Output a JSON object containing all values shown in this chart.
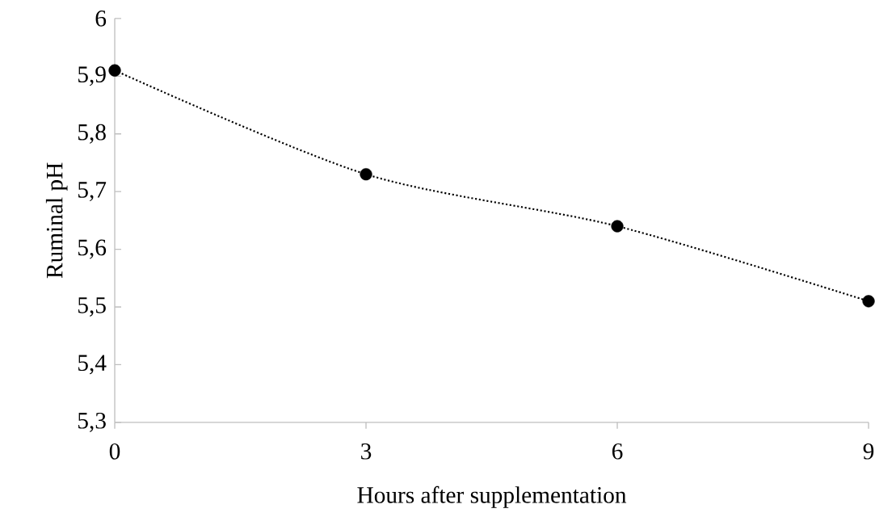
{
  "chart_data": {
    "type": "line",
    "xlabel": "Hours after supplementation",
    "ylabel": "Ruminal pH",
    "x": [
      0,
      3,
      6,
      9
    ],
    "series": [
      {
        "color": "#000000",
        "values": [
          5.91,
          5.73,
          5.64,
          5.51
        ]
      }
    ],
    "xlim": [
      0,
      9
    ],
    "xticks": [
      0,
      3,
      6,
      9
    ],
    "ylim": [
      5.3,
      6
    ],
    "yticks": [
      {
        "value": 5.3,
        "label": "5,3"
      },
      {
        "value": 5.4,
        "label": "5,4"
      },
      {
        "value": 5.5,
        "label": "5,5"
      },
      {
        "value": 5.6,
        "label": "5,6"
      },
      {
        "value": 5.7,
        "label": "5,7"
      },
      {
        "value": 5.8,
        "label": "5,8"
      },
      {
        "value": 5.9,
        "label": "5,9"
      },
      6
    ],
    "grid": false,
    "marker": "circle",
    "line_style": "dotted"
  }
}
